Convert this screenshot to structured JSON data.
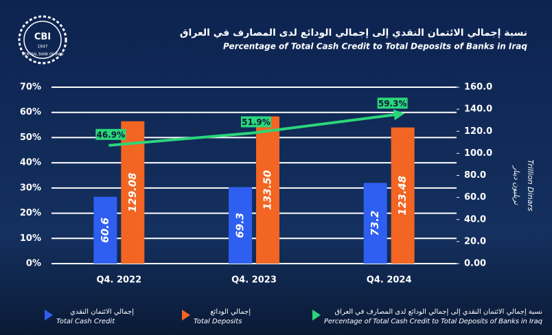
{
  "logo": {
    "text": "CBI",
    "year": "1947",
    "name": "CENTRAL BANK OF IRAQ"
  },
  "chart_data": {
    "type": "bar_line",
    "title": "نسبة إجمالي الائتمان النقدي إلى إجمالي الودائع لدى المصارف في العراق",
    "subtitle": "Percentage of Total Cash Credit to Total Deposits of Banks in Iraq",
    "y2label": "Trillion Dinars",
    "y2label_ar": "تريليون دينار",
    "categories": [
      "Q4. 2022",
      "Q4. 2023",
      "Q4. 2024"
    ],
    "ylim": [
      0,
      70
    ],
    "yticks": [
      {
        "value": 0,
        "label": "0%"
      },
      {
        "value": 10,
        "label": "10%"
      },
      {
        "value": 20,
        "label": "20%"
      },
      {
        "value": 30,
        "label": "30%"
      },
      {
        "value": 40,
        "label": "40%"
      },
      {
        "value": 50,
        "label": "50%"
      },
      {
        "value": 60,
        "label": "60%"
      },
      {
        "value": 70,
        "label": "70%"
      }
    ],
    "y2lim": [
      0,
      160
    ],
    "y2ticks": [
      {
        "value": 0,
        "label": "0.00"
      },
      {
        "value": 20,
        "label": "20.0"
      },
      {
        "value": 40,
        "label": "40.0"
      },
      {
        "value": 60,
        "label": "60.0"
      },
      {
        "value": 80,
        "label": "80.0"
      },
      {
        "value": 100,
        "label": "100.0"
      },
      {
        "value": 120,
        "label": "120.0"
      },
      {
        "value": 140,
        "label": "140.0"
      },
      {
        "value": 160,
        "label": "160.0"
      }
    ],
    "grid": true,
    "series": [
      {
        "name": "Total Cash Credit",
        "name_ar": "إجمالي الائتمان النقدي",
        "type": "bar",
        "axis": "y2",
        "color": "#2f5ff0",
        "values": [
          60.6,
          69.3,
          73.2
        ]
      },
      {
        "name": "Total Deposits",
        "name_ar": "إجمالي الودائع",
        "type": "bar",
        "axis": "y2",
        "color": "#f26522",
        "values": [
          129.08,
          133.5,
          123.48
        ],
        "value_labels": [
          "129.08",
          "133.50",
          "123.48"
        ]
      },
      {
        "name": "Percentage of Total Cash Credit to Total Deposits of Banks in Iraq",
        "name_ar": "نسبة إجمالي الائتمان النقدي إلى إجمالي الودائع لدى المصارف في العراق",
        "type": "line",
        "color": "#2bd67b",
        "values": [
          46.9,
          51.9,
          59.3
        ],
        "value_labels": [
          "46.9%",
          "51.9%",
          "59.3%"
        ]
      }
    ]
  }
}
